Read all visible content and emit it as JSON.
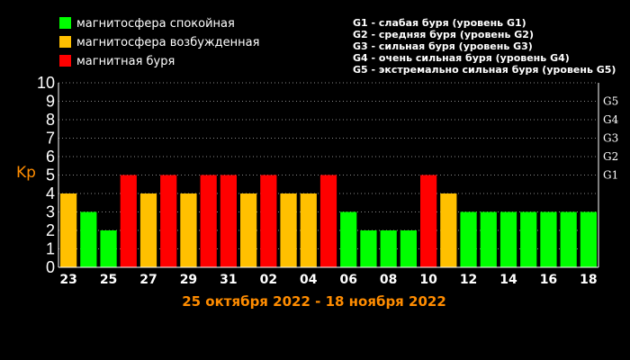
{
  "legend": [
    {
      "label": "магнитосфера спокойная",
      "color": "#00ff00"
    },
    {
      "label": "магнитосфера возбужденная",
      "color": "#ffc000"
    },
    {
      "label": "магнитная буря",
      "color": "#ff0000"
    }
  ],
  "g_levels_text": [
    "G1 - слабая буря (уровень G1)",
    "G2 - средняя буря (уровень G2)",
    "G3 - сильная буря (уровень G3)",
    "G4 - очень сильная буря (уровень G4)",
    "G5 - экстремально сильная буря (уровень G5)"
  ],
  "subtitle": "25 октября 2022 - 18 ноября 2022",
  "colors": {
    "quiet": "#00ff00",
    "active": "#ffc000",
    "storm": "#ff0000",
    "grid": "#8a8a8a",
    "axis": "#ffffff"
  },
  "chart_data": {
    "type": "bar",
    "ylabel": "Kp",
    "ylim": [
      0,
      10
    ],
    "y_ticks": [
      "0",
      "1",
      "2",
      "3",
      "4",
      "5",
      "6",
      "7",
      "8",
      "9",
      "10"
    ],
    "right_ticks": [
      {
        "label": "G1",
        "value": 5
      },
      {
        "label": "G2",
        "value": 6
      },
      {
        "label": "G3",
        "value": 7
      },
      {
        "label": "G4",
        "value": 8
      },
      {
        "label": "G5",
        "value": 9
      }
    ],
    "x_tick_labels": [
      "23",
      "25",
      "27",
      "29",
      "31",
      "02",
      "04",
      "06",
      "08",
      "10",
      "12",
      "14",
      "16",
      "18"
    ],
    "values": [
      4,
      3,
      2,
      5,
      4,
      5,
      4,
      5,
      5,
      4,
      5,
      4,
      4,
      5,
      3,
      2,
      2,
      2,
      5,
      4,
      3,
      3,
      3,
      3,
      3,
      3,
      3
    ],
    "bar_status": [
      "active",
      "quiet",
      "quiet",
      "storm",
      "active",
      "storm",
      "active",
      "storm",
      "storm",
      "active",
      "storm",
      "active",
      "active",
      "storm",
      "quiet",
      "quiet",
      "quiet",
      "quiet",
      "storm",
      "active",
      "quiet",
      "quiet",
      "quiet",
      "quiet",
      "quiet",
      "quiet",
      "quiet"
    ],
    "grid": true
  }
}
